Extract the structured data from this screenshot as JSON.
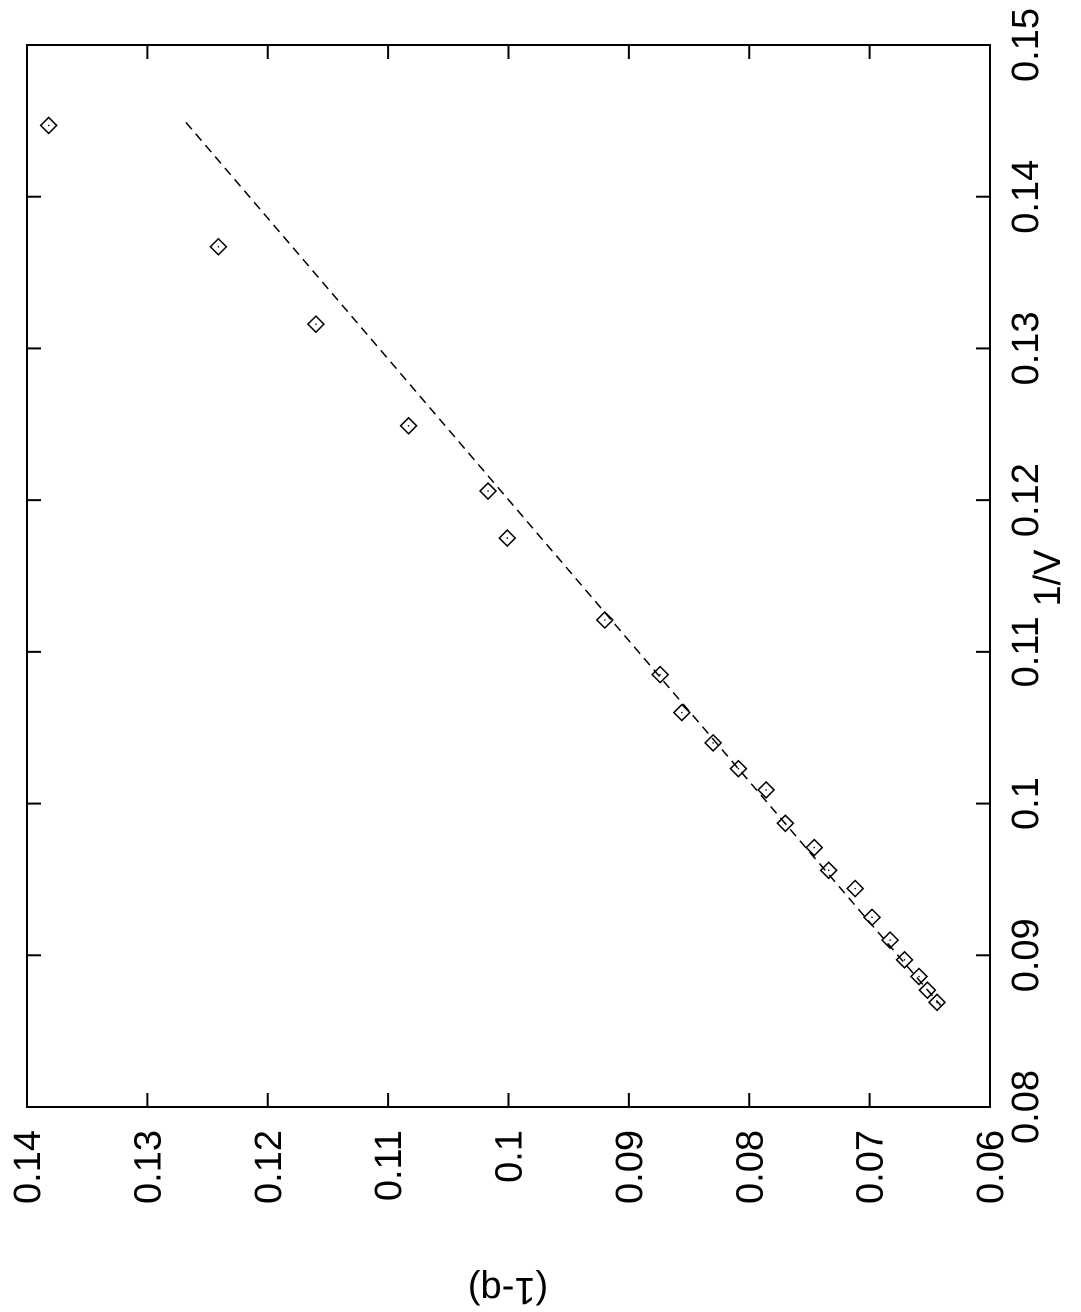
{
  "chart_data": {
    "type": "scatter",
    "orientation": "rotated-90-clockwise",
    "title": "",
    "xlabel": "1/V",
    "ylabel": "(1-q)",
    "xlim": [
      0.08,
      0.15
    ],
    "ylim": [
      0.06,
      0.14
    ],
    "xticks": [
      "0.08",
      "0.09",
      "0.1",
      "0.11",
      "0.12",
      "0.13",
      "0.14",
      "0.15"
    ],
    "yticks": [
      "0.06",
      "0.07",
      "0.08",
      "0.09",
      "0.1",
      "0.11",
      "0.12",
      "0.13",
      "0.14"
    ],
    "grid": false,
    "legend": "none",
    "series": [
      {
        "marker": "diamond",
        "points": [
          {
            "x": 0.1447,
            "y": 0.1382
          },
          {
            "x": 0.1367,
            "y": 0.1241
          },
          {
            "x": 0.1316,
            "y": 0.116
          },
          {
            "x": 0.1249,
            "y": 0.1083
          },
          {
            "x": 0.1206,
            "y": 0.1017
          },
          {
            "x": 0.1175,
            "y": 0.1001
          },
          {
            "x": 0.1121,
            "y": 0.092
          },
          {
            "x": 0.1085,
            "y": 0.0874
          },
          {
            "x": 0.106,
            "y": 0.0856
          },
          {
            "x": 0.104,
            "y": 0.083
          },
          {
            "x": 0.1023,
            "y": 0.0809
          },
          {
            "x": 0.1009,
            "y": 0.0786
          },
          {
            "x": 0.0987,
            "y": 0.077
          },
          {
            "x": 0.0971,
            "y": 0.0746
          },
          {
            "x": 0.0956,
            "y": 0.0734
          },
          {
            "x": 0.0944,
            "y": 0.0712
          },
          {
            "x": 0.0925,
            "y": 0.0698
          },
          {
            "x": 0.091,
            "y": 0.0683
          },
          {
            "x": 0.0897,
            "y": 0.0671
          },
          {
            "x": 0.0886,
            "y": 0.0659
          },
          {
            "x": 0.0877,
            "y": 0.0652
          },
          {
            "x": 0.0869,
            "y": 0.0644
          }
        ]
      },
      {
        "style": "dashed-line",
        "points": [
          {
            "x": 0.1449,
            "y": 0.1268
          },
          {
            "x": 0.0867,
            "y": 0.0641
          }
        ]
      }
    ]
  }
}
